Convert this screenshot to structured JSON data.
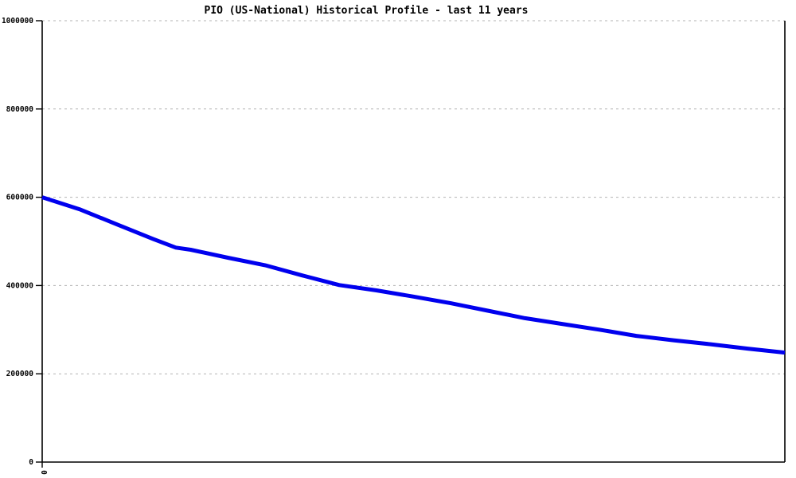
{
  "chart_data": {
    "type": "line",
    "title": "PIO (US-National) Historical Profile - last 11 years",
    "xlabel": "",
    "ylabel": "",
    "x_axis": {
      "visible_tick_labels": [
        "0"
      ],
      "origin_label": "0",
      "label_rotation_deg": 90,
      "range_years": [
        0,
        10
      ]
    },
    "y_axis": {
      "ticks": [
        0,
        200000,
        400000,
        600000,
        800000,
        1000000
      ],
      "tick_labels": [
        "0",
        "200000",
        "400000",
        "600000",
        "800000",
        "1000000"
      ],
      "range": [
        0,
        1000000
      ]
    },
    "grid": {
      "horizontal": true,
      "style": "dashed",
      "color": "#b3b3b3"
    },
    "legend": "none",
    "colors": {
      "line": "#0000ee",
      "axis": "#000000",
      "background": "#ffffff"
    },
    "series": [
      {
        "name": "PIO historical profile",
        "color": "#0000ee",
        "points": [
          [
            0,
            600000
          ],
          [
            0.5,
            573000
          ],
          [
            1,
            539000
          ],
          [
            1.5,
            505000
          ],
          [
            1.8,
            486000
          ],
          [
            2,
            481000
          ],
          [
            2.5,
            463000
          ],
          [
            3,
            446000
          ],
          [
            3.5,
            423000
          ],
          [
            4,
            401000
          ],
          [
            4.5,
            389000
          ],
          [
            5,
            375000
          ],
          [
            5.5,
            360000
          ],
          [
            6,
            343000
          ],
          [
            6.5,
            326000
          ],
          [
            7,
            313000
          ],
          [
            7.5,
            300000
          ],
          [
            8,
            286000
          ],
          [
            8.1,
            284000
          ],
          [
            8.5,
            276000
          ],
          [
            9,
            267000
          ],
          [
            9.5,
            257000
          ],
          [
            10,
            248000
          ]
        ]
      }
    ]
  }
}
